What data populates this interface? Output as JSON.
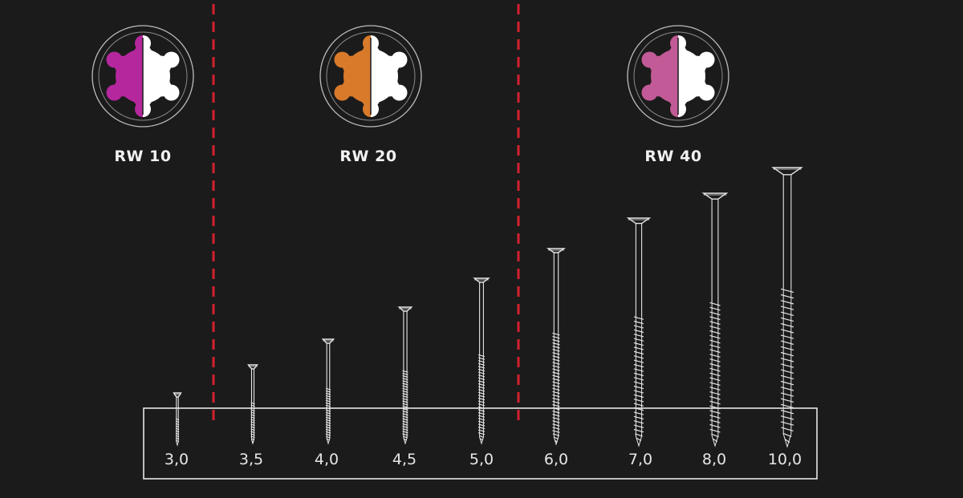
{
  "colors": {
    "background": "#1b1b1b",
    "divider": "#d3202f",
    "line": "#e6e6e6",
    "rw10": "#b5279d",
    "rw20": "#d97a2b",
    "rw40": "#c25a97"
  },
  "bits": [
    {
      "label": "RW 10",
      "icon": "star-drive-bit-icon",
      "color": "#b5279d"
    },
    {
      "label": "RW 20",
      "icon": "star-drive-bit-icon",
      "color": "#d97a2b"
    },
    {
      "label": "RW 40",
      "icon": "star-drive-bit-icon",
      "color": "#c25a97"
    }
  ],
  "screws": [
    {
      "size": "3,0"
    },
    {
      "size": "3,5"
    },
    {
      "size": "4,0"
    },
    {
      "size": "4,5"
    },
    {
      "size": "5,0"
    },
    {
      "size": "6,0"
    },
    {
      "size": "7,0"
    },
    {
      "size": "8,0"
    },
    {
      "size": "10,0"
    }
  ]
}
